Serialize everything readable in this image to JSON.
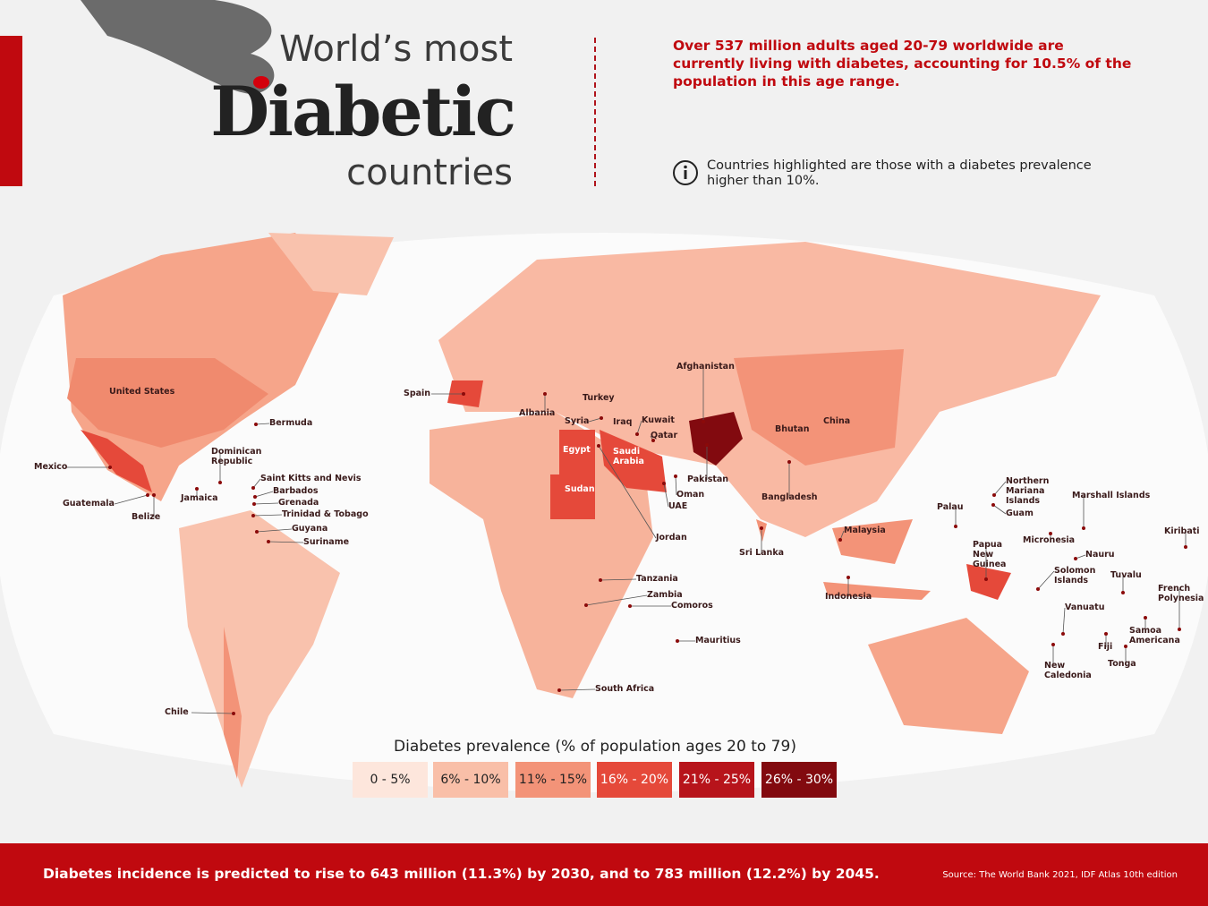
{
  "header": {
    "title_top": "World’s most",
    "title_main": "Diabetic",
    "title_bottom": "countries",
    "intro": "Over 537 million adults aged 20-79 worldwide are currently living with diabetes, accounting for 10.5% of the population in this age range.",
    "note": "Countries highlighted are those with a diabetes prevalence higher than 10%."
  },
  "map_labels": [
    "United States",
    "Bermuda",
    "Dominican Republic",
    "Mexico",
    "Guatemala",
    "Belize",
    "Jamaica",
    "Saint Kitts and Nevis",
    "Barbados",
    "Grenada",
    "Trinidad & Tobago",
    "Guyana",
    "Suriname",
    "Chile",
    "Spain",
    "Albania",
    "Turkey",
    "Syria",
    "Iraq",
    "Kuwait",
    "Qatar",
    "Egypt",
    "Saudi Arabia",
    "Sudan",
    "Oman",
    "UAE",
    "Jordan",
    "Afghanistan",
    "Pakistan",
    "Bhutan",
    "China",
    "Bangladesh",
    "Sri Lanka",
    "Malaysia",
    "Indonesia",
    "Tanzania",
    "Zambia",
    "Comoros",
    "Mauritius",
    "South Africa",
    "Palau",
    "Northern Mariana Islands",
    "Guam",
    "Marshall Islands",
    "Micronesia",
    "Kiribati",
    "Nauru",
    "Papua New Guinea",
    "Solomon Islands",
    "Tuvalu",
    "French Polynesia",
    "Vanuatu",
    "Samoa Americana",
    "Fiji",
    "Tonga",
    "New Caledonia"
  ],
  "legend": {
    "title": "Diabetes prevalence (% of population ages 20 to 79)",
    "items": [
      {
        "label": "0 - 5%",
        "color": "#fde6dc"
      },
      {
        "label": "6% - 10%",
        "color": "#f9bfa8"
      },
      {
        "label": "11% - 15%",
        "color": "#f39378"
      },
      {
        "label": "16% - 20%",
        "color": "#e5493a"
      },
      {
        "label": "21% - 25%",
        "color": "#b7141b"
      },
      {
        "label": "26% - 30%",
        "color": "#820a0f"
      }
    ]
  },
  "footer": {
    "text": "Diabetes incidence is predicted to rise to 643 million (11.3%) by 2030, and to 783 million (12.2%) by 2045.",
    "source": "Source: The World Bank 2021, IDF Atlas 10th edition"
  }
}
